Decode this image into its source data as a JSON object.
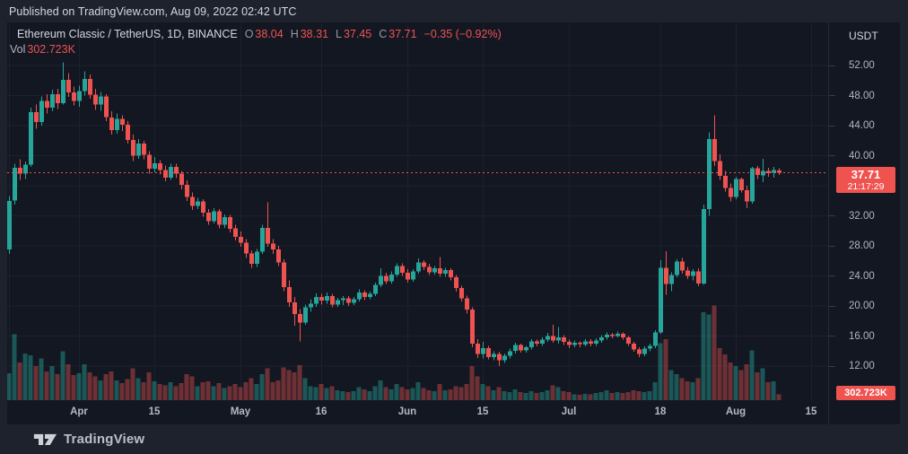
{
  "published_bar": {
    "text": "Published on TradingView.com, Aug 09, 2022 02:42 UTC"
  },
  "header": {
    "symbol": "Ethereum Classic / TetherUS, 1D, BINANCE",
    "ohlc": [
      {
        "label": "O",
        "value": "38.04"
      },
      {
        "label": "H",
        "value": "38.31"
      },
      {
        "label": "L",
        "value": "37.45"
      },
      {
        "label": "C",
        "value": "37.71"
      }
    ],
    "change": "−0.35 (−0.92%)",
    "vol_label": "Vol",
    "vol_value": "302.723K"
  },
  "price_axis": {
    "currency": "USDT",
    "ticks": [
      {
        "value": 52,
        "label": "52.00"
      },
      {
        "value": 48,
        "label": "48.00"
      },
      {
        "value": 44,
        "label": "44.00"
      },
      {
        "value": 40,
        "label": "40.00"
      },
      {
        "value": 32,
        "label": "32.00"
      },
      {
        "value": 28,
        "label": "28.00"
      },
      {
        "value": 24,
        "label": "24.00"
      },
      {
        "value": 20,
        "label": "20.00"
      },
      {
        "value": 16,
        "label": "16.00"
      },
      {
        "value": 12,
        "label": "12.00"
      }
    ],
    "price_label": {
      "price": "37.71",
      "countdown": "21:17:29"
    },
    "volume_label": "302.723K"
  },
  "footer": {
    "brand": "TradingView"
  },
  "colors": {
    "up": "#26a69a",
    "down": "#ef5350",
    "background": "#131722",
    "page_background": "#1e222d",
    "grid": "#1d212e",
    "axis_text": "#b2b5be",
    "label_bg": "#ef5350",
    "text": "#d5d7dd"
  },
  "chart_data": {
    "type": "candlestick",
    "title": "Ethereum Classic / TetherUS",
    "exchange": "BINANCE",
    "interval": "1D",
    "unit": "USDT",
    "start_date": "2022-03-19",
    "end_date": "2022-08-09",
    "ylim": [
      10.5,
      54
    ],
    "grid": true,
    "last": {
      "open": 38.04,
      "high": 38.31,
      "low": 37.45,
      "close": 37.71,
      "change": -0.35,
      "change_pct": -0.92,
      "volume_k": 302.723
    },
    "current_price_line": 37.71,
    "y_ticks": [
      52,
      48,
      44,
      40,
      36,
      32,
      28,
      24,
      20,
      16,
      12
    ],
    "x_ticks": [
      {
        "label": "",
        "day": 0
      },
      {
        "label": "Apr",
        "day": 13
      },
      {
        "label": "15",
        "day": 27
      },
      {
        "label": "May",
        "day": 43
      },
      {
        "label": "16",
        "day": 58
      },
      {
        "label": "Jun",
        "day": 74
      },
      {
        "label": "15",
        "day": 88
      },
      {
        "label": "Jul",
        "day": 104
      },
      {
        "label": "18",
        "day": 121
      },
      {
        "label": "Aug",
        "day": 135
      },
      {
        "label": "15",
        "day": 149
      }
    ],
    "candles_ohlc": [
      [
        27.5,
        34.6,
        26.9,
        34.0
      ],
      [
        34.0,
        38.9,
        33.5,
        38.4
      ],
      [
        38.4,
        39.5,
        36.8,
        37.6
      ],
      [
        37.6,
        39.2,
        36.9,
        38.8
      ],
      [
        38.8,
        46.4,
        38.5,
        45.8
      ],
      [
        45.8,
        46.8,
        43.6,
        44.5
      ],
      [
        44.5,
        47.9,
        44.0,
        47.3
      ],
      [
        47.3,
        48.2,
        45.6,
        46.4
      ],
      [
        46.4,
        48.8,
        45.9,
        48.2
      ],
      [
        48.2,
        48.9,
        46.2,
        47.0
      ],
      [
        47.0,
        52.4,
        46.8,
        50.1
      ],
      [
        50.1,
        51.0,
        47.8,
        48.4
      ],
      [
        48.4,
        49.2,
        46.7,
        47.3
      ],
      [
        47.3,
        49.3,
        46.5,
        48.6
      ],
      [
        48.6,
        51.2,
        48.0,
        50.2
      ],
      [
        50.2,
        50.8,
        47.6,
        48.1
      ],
      [
        48.1,
        48.9,
        46.1,
        46.8
      ],
      [
        46.8,
        48.5,
        46.0,
        47.9
      ],
      [
        47.9,
        48.2,
        44.6,
        45.1
      ],
      [
        45.1,
        45.9,
        42.8,
        43.4
      ],
      [
        43.4,
        45.6,
        42.9,
        44.9
      ],
      [
        44.9,
        45.4,
        43.3,
        44.1
      ],
      [
        44.1,
        44.6,
        41.6,
        42.1
      ],
      [
        42.1,
        42.8,
        39.3,
        40.0
      ],
      [
        40.0,
        42.2,
        39.6,
        41.6
      ],
      [
        41.6,
        42.0,
        39.5,
        40.1
      ],
      [
        40.1,
        40.6,
        37.6,
        38.3
      ],
      [
        38.3,
        39.8,
        37.8,
        39.0
      ],
      [
        39.0,
        39.4,
        37.5,
        38.1
      ],
      [
        38.1,
        38.7,
        36.6,
        37.1
      ],
      [
        37.1,
        38.9,
        36.8,
        38.5
      ],
      [
        38.5,
        38.9,
        37.0,
        37.6
      ],
      [
        37.6,
        38.0,
        35.5,
        36.1
      ],
      [
        36.1,
        36.7,
        34.0,
        34.5
      ],
      [
        34.5,
        35.1,
        32.8,
        33.3
      ],
      [
        33.3,
        34.4,
        32.9,
        33.9
      ],
      [
        33.9,
        34.2,
        31.9,
        32.4
      ],
      [
        32.4,
        32.9,
        30.8,
        31.3
      ],
      [
        31.3,
        33.0,
        31.0,
        32.6
      ],
      [
        32.6,
        32.9,
        30.3,
        30.8
      ],
      [
        30.8,
        32.2,
        30.4,
        31.8
      ],
      [
        31.8,
        32.1,
        29.8,
        30.3
      ],
      [
        30.3,
        30.8,
        28.7,
        29.2
      ],
      [
        29.2,
        29.9,
        27.9,
        28.4
      ],
      [
        28.4,
        28.9,
        26.4,
        27.0
      ],
      [
        27.0,
        27.4,
        25.1,
        25.6
      ],
      [
        25.6,
        27.6,
        25.2,
        27.2
      ],
      [
        27.2,
        30.8,
        26.9,
        30.4
      ],
      [
        30.4,
        33.8,
        27.9,
        28.3
      ],
      [
        28.3,
        28.9,
        26.9,
        27.5
      ],
      [
        27.5,
        28.0,
        25.3,
        25.8
      ],
      [
        25.8,
        26.2,
        22.0,
        22.5
      ],
      [
        22.5,
        23.4,
        19.9,
        20.5
      ],
      [
        20.5,
        21.2,
        17.4,
        18.9
      ],
      [
        18.9,
        19.6,
        15.3,
        17.8
      ],
      [
        17.8,
        20.2,
        17.5,
        19.8
      ],
      [
        19.8,
        20.9,
        19.2,
        20.3
      ],
      [
        20.3,
        21.7,
        19.9,
        21.2
      ],
      [
        21.2,
        21.6,
        20.2,
        20.7
      ],
      [
        20.7,
        21.8,
        20.3,
        21.3
      ],
      [
        21.3,
        21.6,
        19.8,
        20.2
      ],
      [
        20.2,
        21.1,
        19.9,
        20.8
      ],
      [
        20.8,
        21.3,
        20.1,
        21.0
      ],
      [
        21.0,
        21.3,
        20.0,
        20.4
      ],
      [
        20.4,
        21.2,
        20.1,
        20.9
      ],
      [
        20.9,
        22.2,
        20.6,
        21.8
      ],
      [
        21.8,
        22.1,
        20.8,
        21.2
      ],
      [
        21.2,
        21.9,
        20.9,
        21.6
      ],
      [
        21.6,
        23.1,
        21.3,
        22.8
      ],
      [
        22.8,
        25.0,
        22.5,
        24.0
      ],
      [
        24.0,
        24.4,
        22.9,
        23.3
      ],
      [
        23.3,
        24.6,
        23.0,
        24.2
      ],
      [
        24.2,
        25.7,
        23.9,
        25.3
      ],
      [
        25.3,
        25.7,
        24.0,
        24.4
      ],
      [
        24.4,
        24.9,
        23.1,
        23.5
      ],
      [
        23.5,
        24.9,
        23.2,
        24.6
      ],
      [
        24.6,
        26.3,
        24.3,
        25.8
      ],
      [
        25.8,
        26.1,
        24.8,
        25.2
      ],
      [
        25.2,
        25.6,
        24.1,
        24.5
      ],
      [
        24.5,
        25.3,
        24.2,
        25.0
      ],
      [
        25.0,
        26.5,
        23.9,
        24.3
      ],
      [
        24.3,
        25.1,
        23.9,
        24.8
      ],
      [
        24.8,
        25.0,
        23.4,
        23.8
      ],
      [
        23.8,
        24.1,
        21.9,
        22.4
      ],
      [
        22.4,
        22.7,
        20.6,
        21.0
      ],
      [
        21.0,
        21.4,
        19.0,
        19.5
      ],
      [
        19.5,
        19.8,
        14.5,
        15.0
      ],
      [
        15.0,
        15.6,
        13.1,
        13.6
      ],
      [
        13.6,
        15.2,
        13.0,
        14.4
      ],
      [
        14.4,
        14.7,
        12.9,
        13.2
      ],
      [
        13.2,
        14.0,
        12.8,
        13.6
      ],
      [
        13.6,
        13.9,
        12.0,
        12.8
      ],
      [
        12.8,
        13.7,
        12.4,
        13.4
      ],
      [
        13.4,
        14.3,
        13.0,
        14.0
      ],
      [
        14.0,
        15.1,
        13.7,
        14.8
      ],
      [
        14.8,
        15.0,
        13.8,
        14.1
      ],
      [
        14.1,
        14.7,
        13.8,
        14.5
      ],
      [
        14.5,
        15.6,
        14.2,
        15.3
      ],
      [
        15.3,
        15.5,
        14.6,
        15.0
      ],
      [
        15.0,
        15.8,
        14.7,
        15.5
      ],
      [
        15.5,
        16.4,
        15.2,
        16.0
      ],
      [
        16.0,
        17.5,
        15.1,
        15.4
      ],
      [
        15.4,
        17.2,
        15.0,
        15.8
      ],
      [
        15.8,
        16.1,
        14.8,
        15.2
      ],
      [
        15.2,
        15.5,
        14.4,
        14.8
      ],
      [
        14.8,
        15.4,
        14.5,
        15.1
      ],
      [
        15.1,
        15.3,
        14.5,
        14.9
      ],
      [
        14.9,
        15.6,
        14.6,
        15.3
      ],
      [
        15.3,
        15.6,
        14.6,
        15.0
      ],
      [
        15.0,
        15.7,
        14.7,
        15.4
      ],
      [
        15.4,
        16.1,
        15.1,
        15.8
      ],
      [
        15.8,
        16.5,
        15.5,
        16.2
      ],
      [
        16.2,
        16.4,
        15.7,
        16.0
      ],
      [
        16.0,
        16.6,
        15.8,
        16.3
      ],
      [
        16.3,
        16.5,
        15.5,
        15.8
      ],
      [
        15.8,
        16.0,
        14.7,
        15.0
      ],
      [
        15.0,
        15.2,
        13.9,
        14.2
      ],
      [
        14.2,
        14.5,
        13.2,
        13.6
      ],
      [
        13.6,
        14.6,
        13.3,
        14.3
      ],
      [
        14.3,
        15.0,
        14.0,
        14.7
      ],
      [
        14.7,
        16.8,
        14.4,
        16.5
      ],
      [
        16.5,
        26.1,
        16.3,
        25.1
      ],
      [
        25.1,
        27.3,
        21.5,
        22.9
      ],
      [
        22.9,
        24.5,
        22.0,
        24.1
      ],
      [
        24.1,
        26.2,
        23.8,
        25.9
      ],
      [
        25.9,
        26.4,
        24.3,
        24.7
      ],
      [
        24.7,
        25.2,
        23.6,
        24.0
      ],
      [
        24.0,
        24.9,
        23.4,
        24.6
      ],
      [
        24.6,
        25.0,
        22.6,
        23.0
      ],
      [
        23.0,
        33.5,
        22.8,
        32.9
      ],
      [
        32.9,
        43.1,
        32.0,
        42.2
      ],
      [
        42.2,
        45.4,
        38.6,
        39.3
      ],
      [
        39.3,
        40.2,
        36.8,
        37.3
      ],
      [
        37.3,
        38.0,
        35.2,
        35.7
      ],
      [
        35.7,
        36.3,
        33.9,
        34.5
      ],
      [
        34.5,
        37.2,
        34.2,
        36.9
      ],
      [
        36.9,
        37.1,
        35.1,
        35.4
      ],
      [
        35.4,
        36.0,
        33.0,
        33.9
      ],
      [
        33.9,
        38.5,
        33.6,
        38.3
      ],
      [
        38.3,
        38.6,
        36.9,
        37.4
      ],
      [
        37.4,
        39.6,
        36.5,
        38.0
      ],
      [
        38.0,
        38.4,
        37.2,
        37.7
      ],
      [
        37.7,
        38.5,
        37.1,
        38.06
      ],
      [
        38.04,
        38.31,
        37.45,
        37.71
      ]
    ],
    "volumes_k": [
      1350,
      3300,
      1900,
      2350,
      2250,
      1700,
      2100,
      1450,
      1700,
      1300,
      2450,
      1800,
      1250,
      1350,
      1800,
      1400,
      1200,
      1000,
      1300,
      1450,
      1000,
      850,
      1050,
      1600,
      1100,
      900,
      1400,
      950,
      800,
      750,
      900,
      700,
      850,
      1300,
      1200,
      700,
      900,
      950,
      700,
      850,
      600,
      700,
      800,
      650,
      900,
      1100,
      800,
      1300,
      1600,
      900,
      1000,
      1650,
      1500,
      1400,
      1750,
      1100,
      700,
      650,
      800,
      600,
      700,
      500,
      450,
      400,
      450,
      650,
      550,
      450,
      700,
      1000,
      650,
      550,
      800,
      650,
      550,
      600,
      900,
      600,
      500,
      450,
      800,
      500,
      550,
      700,
      650,
      800,
      1700,
      1200,
      800,
      700,
      500,
      650,
      450,
      400,
      550,
      400,
      350,
      450,
      350,
      400,
      500,
      750,
      650,
      450,
      400,
      300,
      280,
      320,
      300,
      350,
      400,
      500,
      350,
      400,
      350,
      400,
      500,
      450,
      400,
      450,
      900,
      2850,
      3050,
      1500,
      1300,
      1100,
      950,
      900,
      1100,
      4400,
      4300,
      4750,
      2600,
      2300,
      1900,
      1700,
      1500,
      1800,
      2500,
      1400,
      1600,
      900,
      950,
      302.723
    ]
  }
}
